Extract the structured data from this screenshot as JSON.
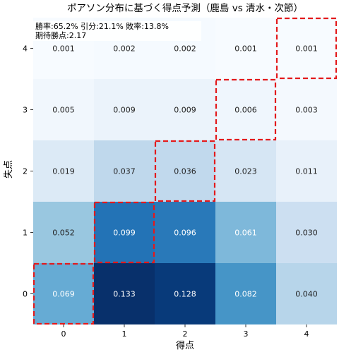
{
  "chart_data": {
    "type": "heatmap",
    "title": "ポアソン分布に基づく得点予測（鹿島 vs 清水・次節）",
    "xlabel": "得点",
    "ylabel": "失点",
    "x_ticks": [
      "0",
      "1",
      "2",
      "3",
      "4"
    ],
    "y_ticks": [
      "0",
      "1",
      "2",
      "3",
      "4"
    ],
    "colormap": "Blues",
    "vmin": 0.001,
    "vmax": 0.133,
    "values": [
      [
        0.069,
        0.133,
        0.128,
        0.082,
        0.04
      ],
      [
        0.052,
        0.099,
        0.096,
        0.061,
        0.03
      ],
      [
        0.019,
        0.037,
        0.036,
        0.023,
        0.011
      ],
      [
        0.005,
        0.009,
        0.009,
        0.006,
        0.003
      ],
      [
        0.001,
        0.002,
        0.002,
        0.001,
        0.001
      ]
    ],
    "labels": [
      [
        "0.069",
        "0.133",
        "0.128",
        "0.082",
        "0.040"
      ],
      [
        "0.052",
        "0.099",
        "0.096",
        "0.061",
        "0.030"
      ],
      [
        "0.019",
        "0.037",
        "0.036",
        "0.023",
        "0.011"
      ],
      [
        "0.005",
        "0.009",
        "0.009",
        "0.006",
        "0.003"
      ],
      [
        "0.001",
        "0.002",
        "0.002",
        "0.001",
        "0.001"
      ]
    ],
    "highlighted_cells": [
      [
        0,
        0
      ],
      [
        1,
        1
      ],
      [
        2,
        2
      ],
      [
        3,
        3
      ],
      [
        4,
        4
      ]
    ],
    "highlight_color": "#e31a1c",
    "annotation": {
      "line1": "勝率:65.2% 引分:21.1% 敗率:13.8%",
      "line2": "期待勝点:2.17"
    }
  }
}
